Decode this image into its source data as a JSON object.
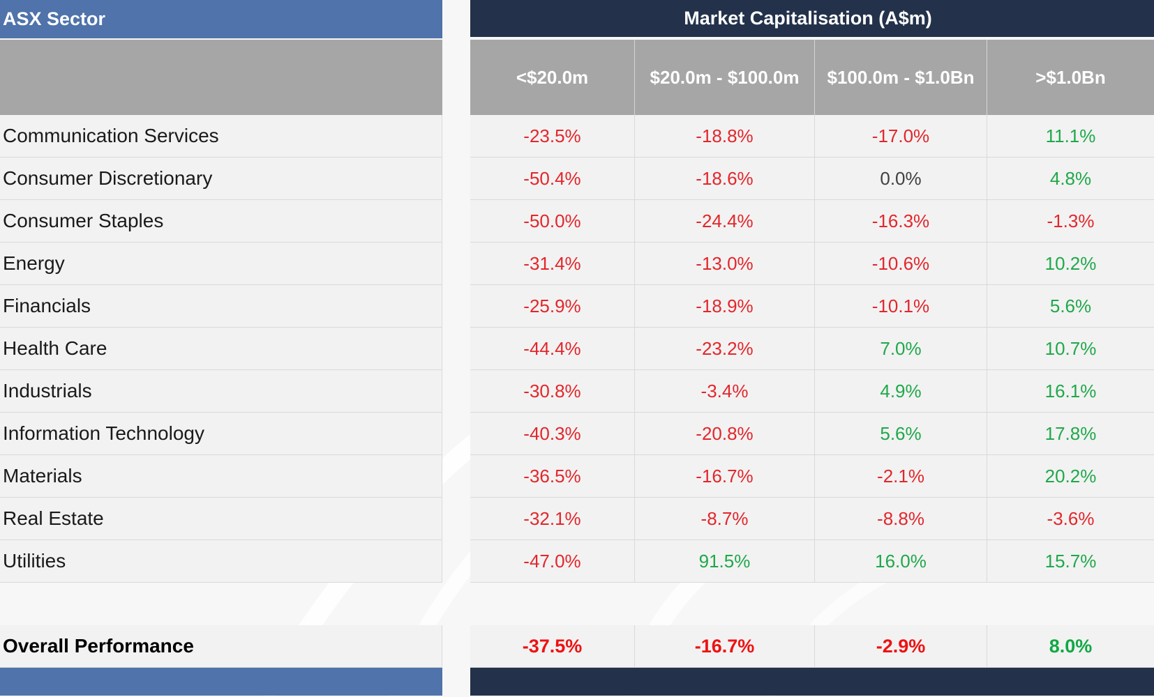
{
  "left_header": "ASX Sector",
  "right_header": "Market Capitalisation (A$m)",
  "columns": [
    "<$20.0m",
    "$20.0m - $100.0m",
    "$100.0m - $1.0Bn",
    ">$1.0Bn"
  ],
  "colors": {
    "header_blue": "#4f73aa",
    "header_navy": "#23324a",
    "subheader_gray": "#a6a6a6",
    "negative": "#e3262b",
    "positive": "#1fa84a",
    "neutral": "#404040"
  },
  "rows": [
    {
      "sector": "Communication Services",
      "v": [
        "-23.5%",
        "-18.8%",
        "-17.0%",
        "11.1%"
      ],
      "s": [
        "neg",
        "neg",
        "neg",
        "pos"
      ]
    },
    {
      "sector": "Consumer Discretionary",
      "v": [
        "-50.4%",
        "-18.6%",
        "0.0%",
        "4.8%"
      ],
      "s": [
        "neg",
        "neg",
        "neu",
        "pos"
      ]
    },
    {
      "sector": "Consumer Staples",
      "v": [
        "-50.0%",
        "-24.4%",
        "-16.3%",
        "-1.3%"
      ],
      "s": [
        "neg",
        "neg",
        "neg",
        "neg"
      ]
    },
    {
      "sector": "Energy",
      "v": [
        "-31.4%",
        "-13.0%",
        "-10.6%",
        "10.2%"
      ],
      "s": [
        "neg",
        "neg",
        "neg",
        "pos"
      ]
    },
    {
      "sector": "Financials",
      "v": [
        "-25.9%",
        "-18.9%",
        "-10.1%",
        "5.6%"
      ],
      "s": [
        "neg",
        "neg",
        "neg",
        "pos"
      ]
    },
    {
      "sector": "Health Care",
      "v": [
        "-44.4%",
        "-23.2%",
        "7.0%",
        "10.7%"
      ],
      "s": [
        "neg",
        "neg",
        "pos",
        "pos"
      ]
    },
    {
      "sector": "Industrials",
      "v": [
        "-30.8%",
        "-3.4%",
        "4.9%",
        "16.1%"
      ],
      "s": [
        "neg",
        "neg",
        "pos",
        "pos"
      ]
    },
    {
      "sector": "Information Technology",
      "v": [
        "-40.3%",
        "-20.8%",
        "5.6%",
        "17.8%"
      ],
      "s": [
        "neg",
        "neg",
        "pos",
        "pos"
      ]
    },
    {
      "sector": "Materials",
      "v": [
        "-36.5%",
        "-16.7%",
        "-2.1%",
        "20.2%"
      ],
      "s": [
        "neg",
        "neg",
        "neg",
        "pos"
      ]
    },
    {
      "sector": "Real Estate",
      "v": [
        "-32.1%",
        "-8.7%",
        "-8.8%",
        "-3.6%"
      ],
      "s": [
        "neg",
        "neg",
        "neg",
        "neg"
      ]
    },
    {
      "sector": "Utilities",
      "v": [
        "-47.0%",
        "91.5%",
        "16.0%",
        "15.7%"
      ],
      "s": [
        "neg",
        "pos",
        "pos",
        "pos"
      ]
    }
  ],
  "overall": {
    "label": "Overall Performance",
    "v": [
      "-37.5%",
      "-16.7%",
      "-2.9%",
      "8.0%"
    ],
    "s": [
      "neg",
      "neg",
      "neg",
      "pos"
    ]
  }
}
